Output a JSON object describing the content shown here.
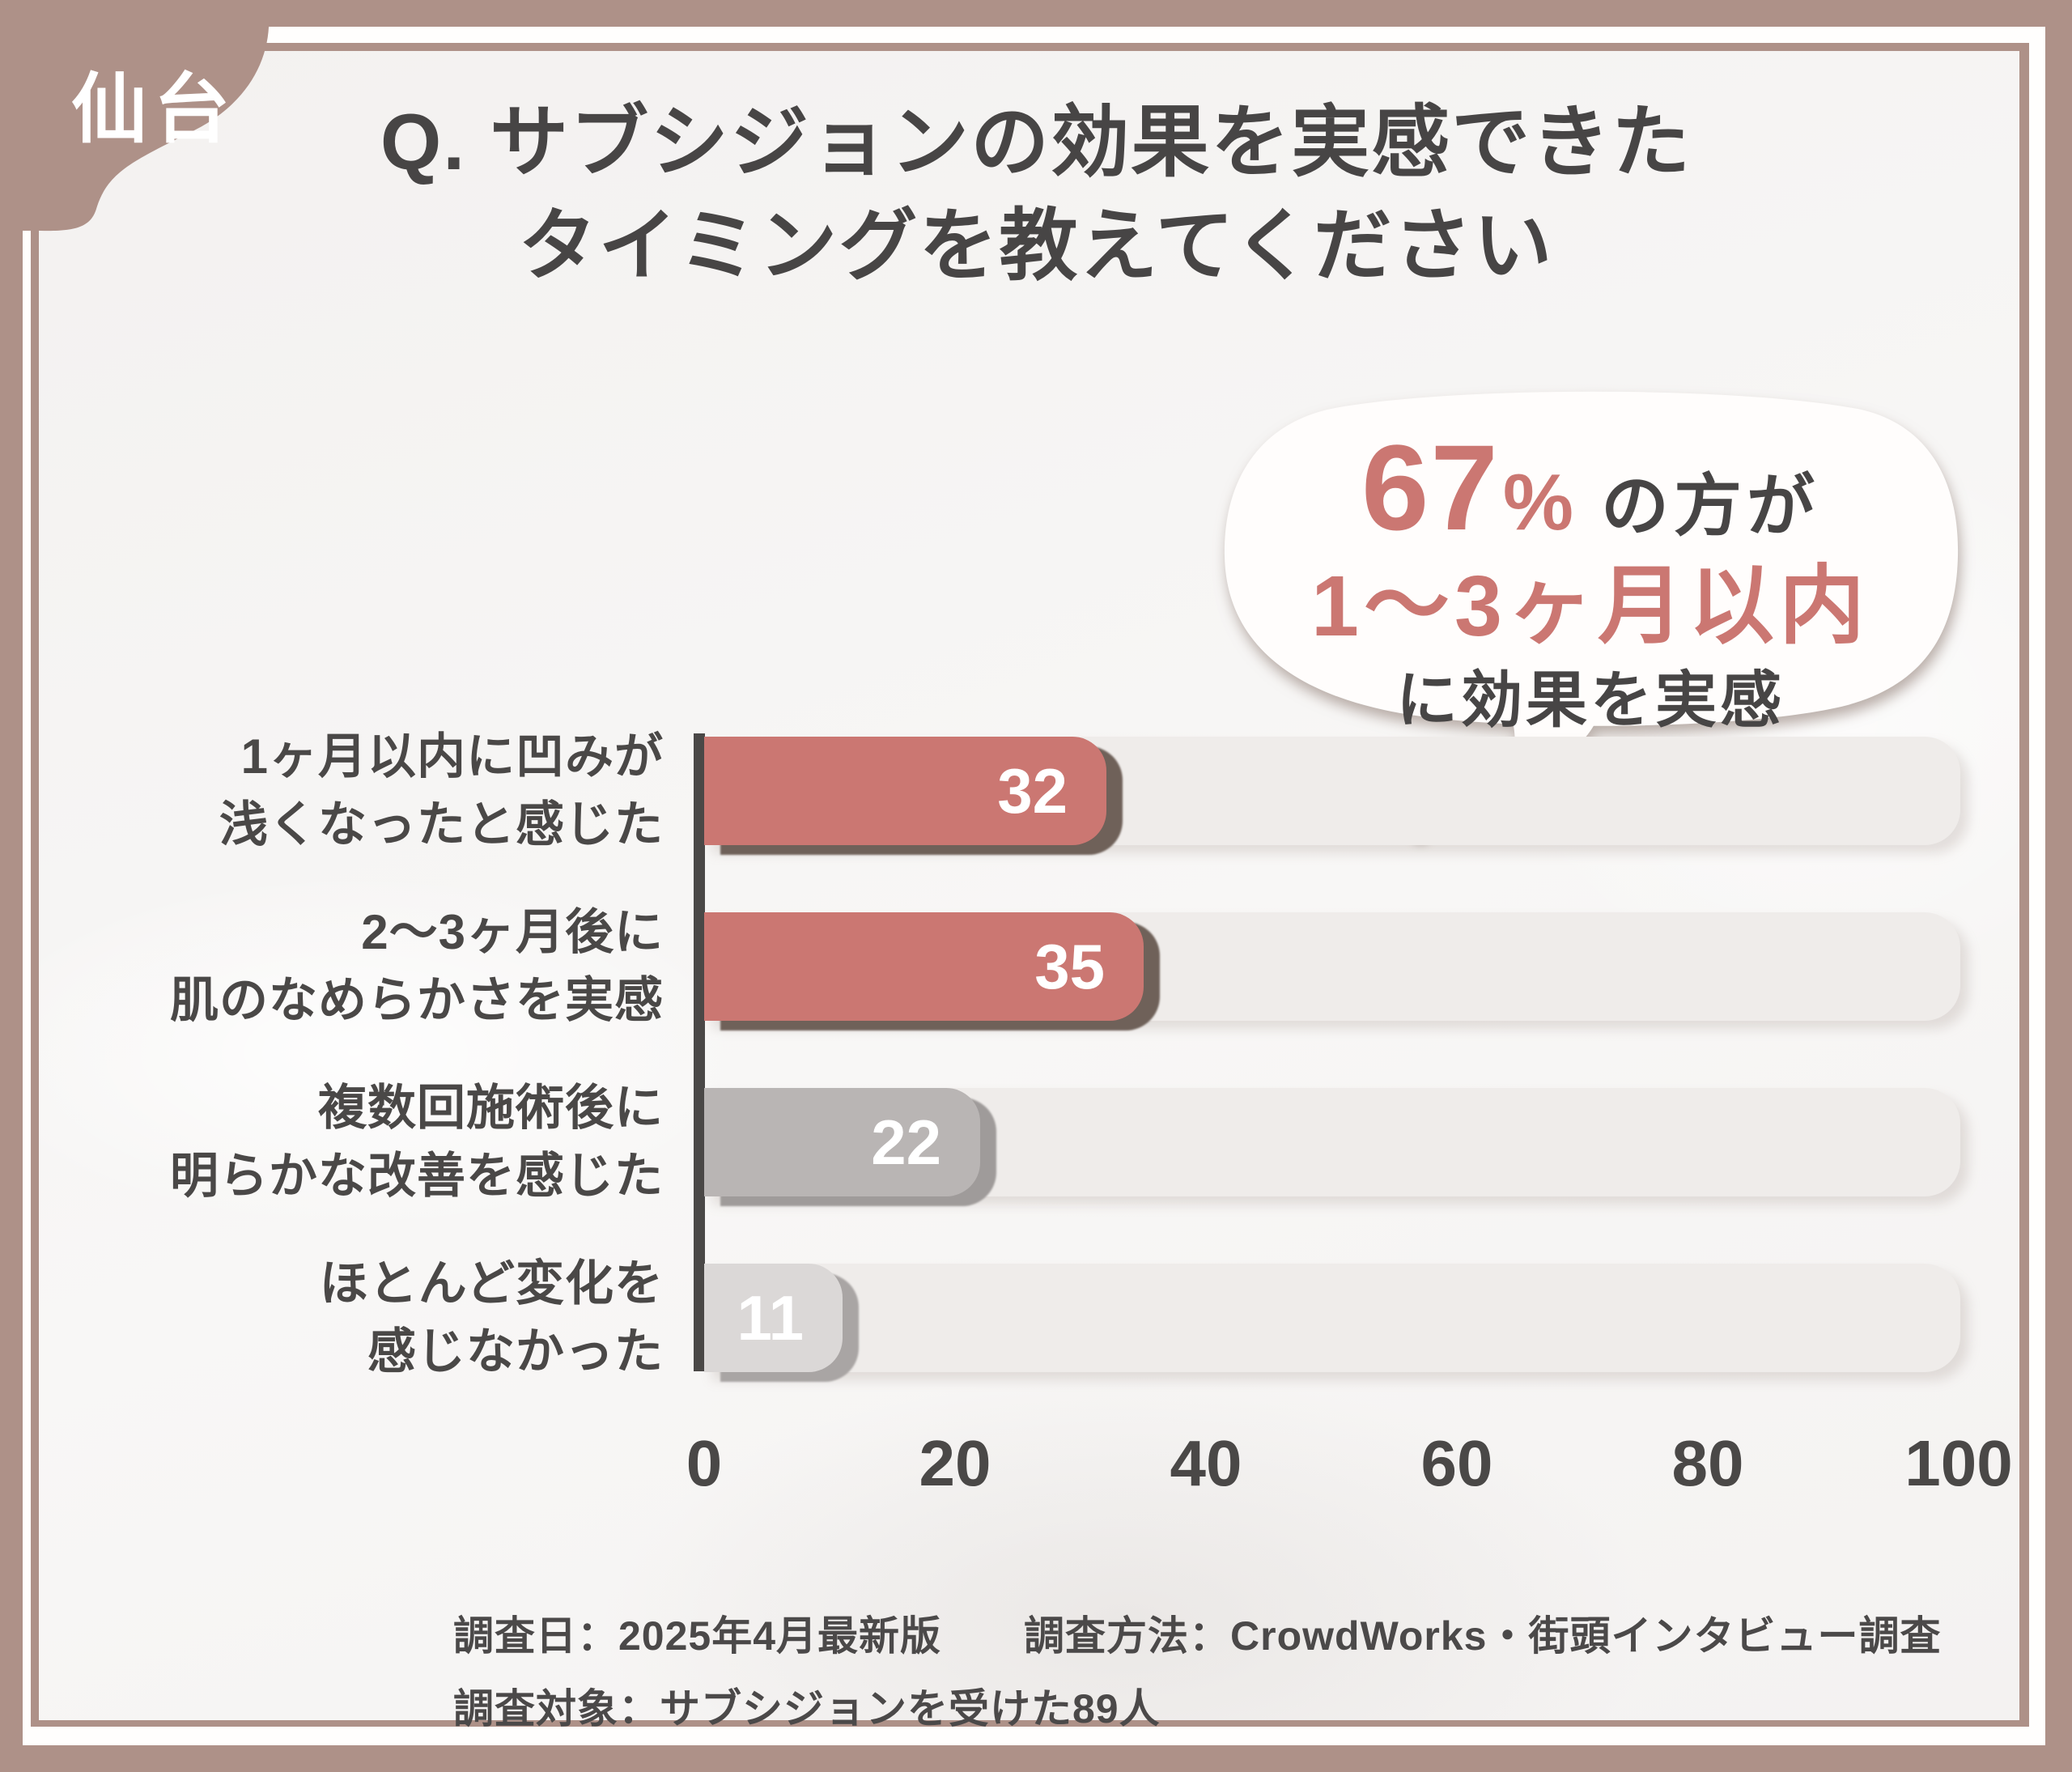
{
  "badge": {
    "label": "仙台"
  },
  "title": {
    "line1": "Q. サブシジョンの効果を実感できた",
    "line2": "タイミングを教えてください"
  },
  "bubble": {
    "percent": "67",
    "percent_sign": "%",
    "after_percent": "の方が",
    "line2": "1〜3ヶ月以内",
    "line3": "に効果を実感"
  },
  "chart_data": {
    "type": "bar",
    "orientation": "horizontal",
    "title": "Q. サブシジョンの効果を実感できたタイミングを教えてください",
    "xlabel": "",
    "ylabel": "",
    "xlim": [
      0,
      100
    ],
    "x_ticks": [
      0,
      20,
      40,
      60,
      80,
      100
    ],
    "grid": false,
    "legend": false,
    "categories": [
      "1ヶ月以内に凹みが浅くなったと感じた",
      "2〜3ヶ月後に肌のなめらかさを実感",
      "複数回施術後に明らかな改善を感じた",
      "ほとんど変化を感じなかった"
    ],
    "values": [
      32,
      35,
      22,
      11
    ],
    "rows": [
      {
        "label_lines": [
          "1ヶ月以内に凹みが",
          "浅くなったと感じた"
        ],
        "value": 32,
        "color": "#cb7772",
        "shadow_color": "#6f6159"
      },
      {
        "label_lines": [
          "2〜3ヶ月後に",
          "肌のなめらかさを実感"
        ],
        "value": 35,
        "color": "#cb7772",
        "shadow_color": "#6f6159"
      },
      {
        "label_lines": [
          "複数回施術後に",
          "明らかな改善を感じた"
        ],
        "value": 22,
        "color": "#b9b5b4",
        "shadow_color": "#9f9b9a"
      },
      {
        "label_lines": [
          "ほとんど変化を",
          "感じなかった"
        ],
        "value": 11,
        "color": "#dbd8d7",
        "shadow_color": "#a9a5a4"
      }
    ],
    "bar_label_color": "#ffffff",
    "track_color": "#efecea",
    "axis_color": "#4a4847"
  },
  "footer": {
    "line1": "調査日：2025年4月最新版　　調査方法：CrowdWorks・街頭インタビュー調査",
    "line2": "調査対象：サブシジョンを受けた89人"
  },
  "colors": {
    "frame": "#ae9188",
    "card": "#f7f5f4",
    "accent": "#cb7772",
    "text": "#4a4847"
  }
}
